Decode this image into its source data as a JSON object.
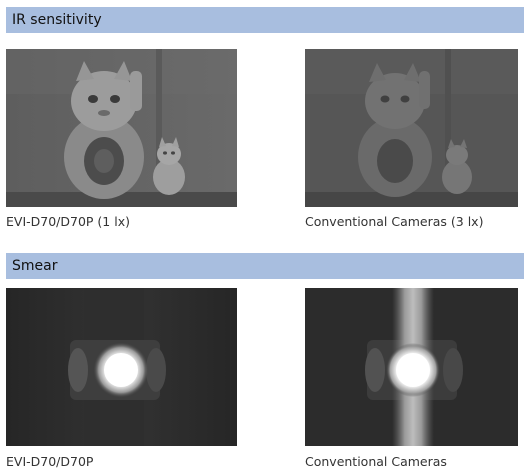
{
  "sections": [
    {
      "title": "IR sensitivity",
      "captions": [
        "EVI-D70/D70P (1 lx)",
        "Conventional Cameras (3 lx)"
      ]
    },
    {
      "title": "Smear",
      "captions": [
        "EVI-D70/D70P",
        "Conventional Cameras"
      ]
    }
  ]
}
